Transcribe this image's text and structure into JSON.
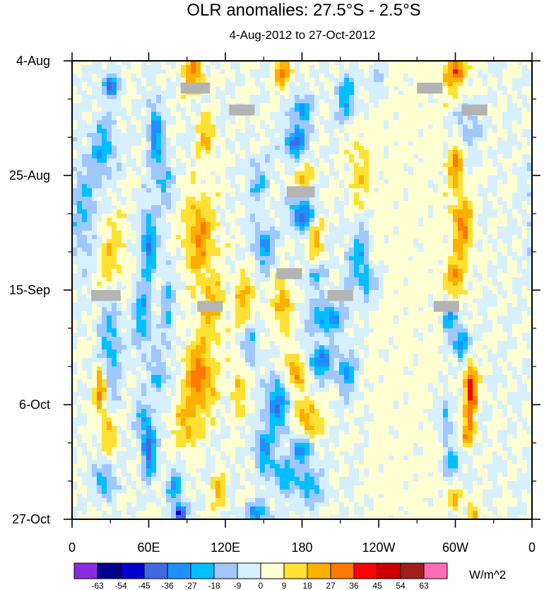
{
  "chart_data": {
    "type": "heatmap",
    "title": "OLR anomalies: 27.5°S - 2.5°S",
    "subtitle": "4-Aug-2012 to 27-Oct-2012",
    "x_ticks": [
      {
        "lon": 0,
        "label": "0"
      },
      {
        "lon": 60,
        "label": "60E"
      },
      {
        "lon": 120,
        "label": "120E"
      },
      {
        "lon": 180,
        "label": "180"
      },
      {
        "lon": 240,
        "label": "120W"
      },
      {
        "lon": 300,
        "label": "60W"
      },
      {
        "lon": 360,
        "label": "0"
      }
    ],
    "x_range": [
      0,
      360
    ],
    "y_ticks": [
      {
        "day": 0,
        "label": "4-Aug"
      },
      {
        "day": 21,
        "label": "25-Aug"
      },
      {
        "day": 42,
        "label": "15-Sep"
      },
      {
        "day": 63,
        "label": "6-Oct"
      },
      {
        "day": 84,
        "label": "27-Oct"
      }
    ],
    "y_range_days": [
      0,
      84
    ],
    "levels": [
      -63,
      -54,
      -45,
      -36,
      -27,
      -18,
      -9,
      0,
      9,
      18,
      27,
      36,
      45,
      54,
      63
    ],
    "level_labels": [
      "-63",
      "-54",
      "-45",
      "-36",
      "-27",
      "-18",
      "-9",
      "0",
      "9",
      "18",
      "27",
      "36",
      "45",
      "54",
      "63"
    ],
    "colors": [
      "#8a2be2",
      "#00008b",
      "#0000cd",
      "#4169e1",
      "#1e90ff",
      "#00bfff",
      "#a0c8ff",
      "#d6f0ff",
      "#ffffd2",
      "#ffe134",
      "#ffb000",
      "#ff7800",
      "#ff0000",
      "#cd0000",
      "#a01e1e",
      "#ff6eb4"
    ],
    "units": "W/m^2",
    "missing_color": "#b4b4b4",
    "missing_blocks": [
      {
        "lon0": 85,
        "lon1": 108,
        "day0": 4,
        "day1": 6
      },
      {
        "lon0": 123,
        "lon1": 143,
        "day0": 8,
        "day1": 10
      },
      {
        "lon0": 270,
        "lon1": 290,
        "day0": 4,
        "day1": 6
      },
      {
        "lon0": 305,
        "lon1": 325,
        "day0": 8,
        "day1": 10
      },
      {
        "lon0": 168,
        "lon1": 190,
        "day0": 23,
        "day1": 25
      },
      {
        "lon0": 160,
        "lon1": 180,
        "day0": 38,
        "day1": 40
      },
      {
        "lon0": 15,
        "lon1": 38,
        "day0": 42,
        "day1": 44
      },
      {
        "lon0": 98,
        "lon1": 118,
        "day0": 44,
        "day1": 46
      },
      {
        "lon0": 200,
        "lon1": 220,
        "day0": 42,
        "day1": 44
      },
      {
        "lon0": 283,
        "lon1": 303,
        "day0": 44,
        "day1": 46
      }
    ],
    "features": [
      {
        "lon": 30,
        "day": 4.5,
        "amp": -40,
        "sx": 6,
        "sy": 2
      },
      {
        "lon": 25,
        "day": 16,
        "amp": -22,
        "sx": 10,
        "sy": 6
      },
      {
        "lon": 10,
        "day": 28,
        "amp": -18,
        "sx": 12,
        "sy": 10
      },
      {
        "lon": 30,
        "day": 52,
        "amp": -24,
        "sx": 8,
        "sy": 10
      },
      {
        "lon": 22,
        "day": 60,
        "amp": 32,
        "sx": 5,
        "sy": 4
      },
      {
        "lon": 28,
        "day": 68,
        "amp": 22,
        "sx": 6,
        "sy": 4
      },
      {
        "lon": 25,
        "day": 77,
        "amp": -28,
        "sx": 7,
        "sy": 3
      },
      {
        "lon": 30,
        "day": 36,
        "amp": 16,
        "sx": 12,
        "sy": 8
      },
      {
        "lon": 65,
        "day": 13,
        "amp": -30,
        "sx": 6,
        "sy": 6
      },
      {
        "lon": 72,
        "day": 22,
        "amp": -20,
        "sx": 6,
        "sy": 5
      },
      {
        "lon": 60,
        "day": 33,
        "amp": -34,
        "sx": 6,
        "sy": 6
      },
      {
        "lon": 55,
        "day": 47,
        "amp": -24,
        "sx": 7,
        "sy": 7
      },
      {
        "lon": 68,
        "day": 58,
        "amp": -22,
        "sx": 6,
        "sy": 4
      },
      {
        "lon": 60,
        "day": 71,
        "amp": -42,
        "sx": 5,
        "sy": 5
      },
      {
        "lon": 80,
        "day": 78,
        "amp": -26,
        "sx": 6,
        "sy": 3
      },
      {
        "lon": 85,
        "day": 83,
        "amp": -48,
        "sx": 5,
        "sy": 2
      },
      {
        "lon": 75,
        "day": 45,
        "amp": -18,
        "sx": 5,
        "sy": 8
      },
      {
        "lon": 55,
        "day": 65,
        "amp": -16,
        "sx": 6,
        "sy": 4
      },
      {
        "lon": 95,
        "day": 2,
        "amp": 28,
        "sx": 8,
        "sy": 4
      },
      {
        "lon": 105,
        "day": 14,
        "amp": 20,
        "sx": 7,
        "sy": 4
      },
      {
        "lon": 100,
        "day": 32,
        "amp": 26,
        "sx": 12,
        "sy": 8
      },
      {
        "lon": 110,
        "day": 45,
        "amp": 18,
        "sx": 10,
        "sy": 6
      },
      {
        "lon": 100,
        "day": 58,
        "amp": 30,
        "sx": 12,
        "sy": 7
      },
      {
        "lon": 90,
        "day": 67,
        "amp": 18,
        "sx": 10,
        "sy": 5
      },
      {
        "lon": 115,
        "day": 79,
        "amp": 20,
        "sx": 6,
        "sy": 3
      },
      {
        "lon": 145,
        "day": 22,
        "amp": -18,
        "sx": 8,
        "sy": 4
      },
      {
        "lon": 150,
        "day": 34,
        "amp": -28,
        "sx": 8,
        "sy": 4
      },
      {
        "lon": 140,
        "day": 52,
        "amp": -22,
        "sx": 6,
        "sy": 4
      },
      {
        "lon": 160,
        "day": 63,
        "amp": -36,
        "sx": 8,
        "sy": 5
      },
      {
        "lon": 150,
        "day": 71,
        "amp": -30,
        "sx": 7,
        "sy": 4
      },
      {
        "lon": 165,
        "day": 76,
        "amp": -26,
        "sx": 9,
        "sy": 3
      },
      {
        "lon": 145,
        "day": 83,
        "amp": -30,
        "sx": 10,
        "sy": 2
      },
      {
        "lon": 135,
        "day": 44,
        "amp": 20,
        "sx": 8,
        "sy": 5
      },
      {
        "lon": 130,
        "day": 60,
        "amp": 18,
        "sx": 6,
        "sy": 5
      },
      {
        "lon": 165,
        "day": 2,
        "amp": 30,
        "sx": 6,
        "sy": 3
      },
      {
        "lon": 180,
        "day": 9,
        "amp": -26,
        "sx": 8,
        "sy": 3
      },
      {
        "lon": 175,
        "day": 15,
        "amp": -38,
        "sx": 9,
        "sy": 3
      },
      {
        "lon": 180,
        "day": 28,
        "amp": -42,
        "sx": 9,
        "sy": 3
      },
      {
        "lon": 190,
        "day": 39,
        "amp": -22,
        "sx": 8,
        "sy": 3
      },
      {
        "lon": 200,
        "day": 47,
        "amp": -30,
        "sx": 14,
        "sy": 3
      },
      {
        "lon": 195,
        "day": 55,
        "amp": -34,
        "sx": 10,
        "sy": 3
      },
      {
        "lon": 175,
        "day": 57,
        "amp": 28,
        "sx": 8,
        "sy": 3
      },
      {
        "lon": 185,
        "day": 66,
        "amp": 26,
        "sx": 10,
        "sy": 4
      },
      {
        "lon": 180,
        "day": 71,
        "amp": -30,
        "sx": 9,
        "sy": 3
      },
      {
        "lon": 185,
        "day": 78,
        "amp": -26,
        "sx": 10,
        "sy": 3
      },
      {
        "lon": 165,
        "day": 45,
        "amp": 22,
        "sx": 7,
        "sy": 6
      },
      {
        "lon": 180,
        "day": 21,
        "amp": 18,
        "sx": 8,
        "sy": 3
      },
      {
        "lon": 190,
        "day": 33,
        "amp": 22,
        "sx": 6,
        "sy": 5
      },
      {
        "lon": 215,
        "day": 7,
        "amp": -26,
        "sx": 8,
        "sy": 4
      },
      {
        "lon": 225,
        "day": 36,
        "amp": -22,
        "sx": 9,
        "sy": 6
      },
      {
        "lon": 235,
        "day": 41,
        "amp": -28,
        "sx": 7,
        "sy": 3
      },
      {
        "lon": 215,
        "day": 57,
        "amp": -26,
        "sx": 7,
        "sy": 4
      },
      {
        "lon": 240,
        "day": 3,
        "amp": -28,
        "sx": 6,
        "sy": 3
      },
      {
        "lon": 225,
        "day": 20,
        "amp": 14,
        "sx": 9,
        "sy": 8
      },
      {
        "lon": 300,
        "day": 2,
        "amp": 30,
        "sx": 10,
        "sy": 4
      },
      {
        "lon": 310,
        "day": 12,
        "amp": -16,
        "sx": 8,
        "sy": 5
      },
      {
        "lon": 300,
        "day": 19,
        "amp": 26,
        "sx": 6,
        "sy": 4
      },
      {
        "lon": 305,
        "day": 30,
        "amp": 28,
        "sx": 9,
        "sy": 6
      },
      {
        "lon": 300,
        "day": 40,
        "amp": 22,
        "sx": 8,
        "sy": 4
      },
      {
        "lon": 295,
        "day": 47,
        "amp": -28,
        "sx": 5,
        "sy": 3
      },
      {
        "lon": 305,
        "day": 52,
        "amp": -34,
        "sx": 6,
        "sy": 3
      },
      {
        "lon": 312,
        "day": 60,
        "amp": 42,
        "sx": 5,
        "sy": 5
      },
      {
        "lon": 310,
        "day": 68,
        "amp": 26,
        "sx": 5,
        "sy": 3
      },
      {
        "lon": 298,
        "day": 74,
        "amp": -28,
        "sx": 6,
        "sy": 3
      },
      {
        "lon": 300,
        "day": 80,
        "amp": 22,
        "sx": 5,
        "sy": 3
      },
      {
        "lon": 315,
        "day": 83,
        "amp": 20,
        "sx": 5,
        "sy": 2
      },
      {
        "lon": 290,
        "day": 65,
        "amp": -22,
        "sx": 6,
        "sy": 4
      }
    ]
  }
}
